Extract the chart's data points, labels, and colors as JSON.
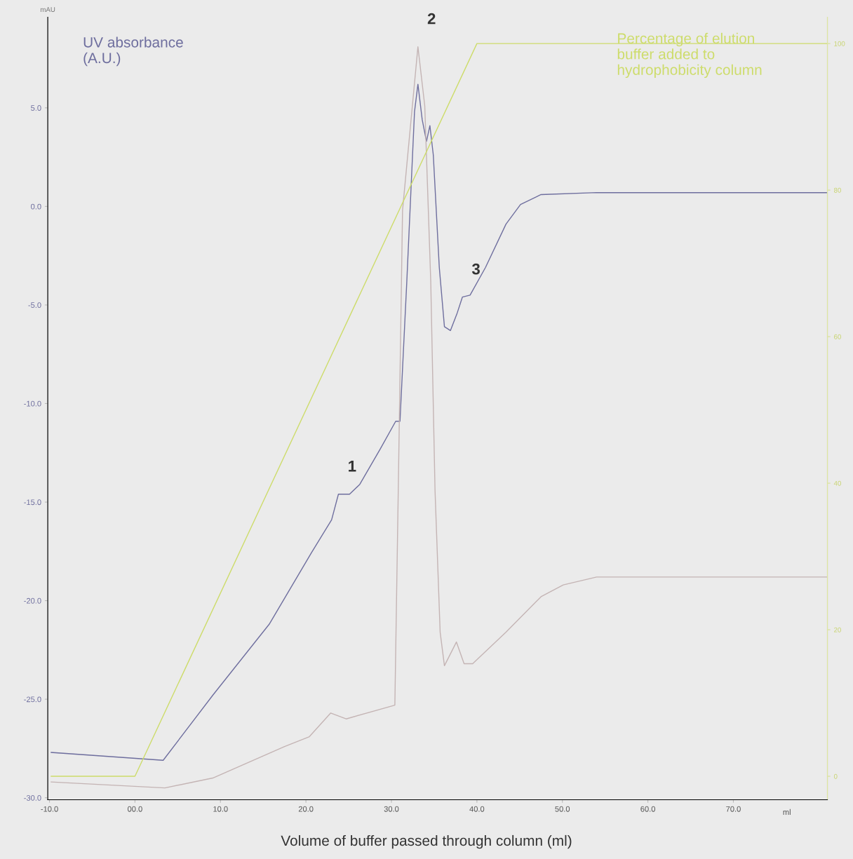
{
  "chart_data": {
    "type": "line",
    "ylabel": "UV absorbance\n(A.U.)",
    "y2label": "Percentage of elution\nbuffer added to\nhydrophobicity column",
    "xlabel": "Volume of buffer passed through column (ml)",
    "xlim": [
      -10.2,
      81
    ],
    "ylim": [
      -30.1,
      9.6
    ],
    "y2lim": [
      -3.2,
      103.6
    ],
    "xticks": [
      {
        "value": -10,
        "label": "-10.0"
      },
      {
        "value": 0,
        "label": "00.0"
      },
      {
        "value": 10,
        "label": "10.0"
      },
      {
        "value": 20,
        "label": "20.0"
      },
      {
        "value": 30,
        "label": "30.0"
      },
      {
        "value": 40,
        "label": "40.0"
      },
      {
        "value": 50,
        "label": "50.0"
      },
      {
        "value": 60,
        "label": "60.0"
      },
      {
        "value": 70,
        "label": "70.0"
      }
    ],
    "yticks": [
      {
        "value": 5,
        "label": "5.0"
      },
      {
        "value": 0,
        "label": "0.0"
      },
      {
        "value": -5,
        "label": "-5.0"
      },
      {
        "value": -10,
        "label": "-10.0"
      },
      {
        "value": -15,
        "label": "-15.0"
      },
      {
        "value": -20,
        "label": "-20.0"
      },
      {
        "value": -25,
        "label": "-25.0"
      },
      {
        "value": -30,
        "label": "-30.0"
      }
    ],
    "y2ticks": [
      0,
      20,
      40,
      60,
      80,
      100
    ],
    "grid": false,
    "series": [
      {
        "color": "#6e6e9e",
        "x": [
          -9.8,
          3.3,
          9.1,
          15.7,
          20.6,
          23.0,
          23.8,
          25.1,
          26.3,
          28.7,
          30.5,
          31.0,
          31.8,
          32.7,
          33.1,
          33.6,
          34.1,
          34.5,
          34.9,
          35.6,
          36.2,
          36.9,
          37.7,
          38.3,
          39.2,
          41.0,
          43.4,
          45.1,
          47.5,
          54.0,
          66.3,
          81.0
        ],
        "values": [
          -27.7,
          -28.1,
          -24.8,
          -21.2,
          -17.6,
          -15.9,
          -14.6,
          -14.6,
          -14.1,
          -12.3,
          -10.9,
          -10.9,
          -3.8,
          4.8,
          6.2,
          4.4,
          3.3,
          4.1,
          2.6,
          -3.1,
          -6.1,
          -6.3,
          -5.4,
          -4.6,
          -4.5,
          -3.1,
          -0.9,
          0.1,
          0.6,
          0.7,
          0.7,
          0.7
        ]
      },
      {
        "color": "#c4b4b4",
        "x": [
          -9.8,
          3.5,
          9.1,
          17.5,
          20.4,
          22.9,
          24.7,
          30.4,
          30.8,
          31.3,
          33.1,
          33.9,
          34.6,
          35.1,
          35.7,
          36.2,
          37.6,
          38.5,
          39.5,
          43.4,
          47.5,
          50.1,
          54.0,
          81.0
        ],
        "values": [
          -29.2,
          -29.5,
          -29.0,
          -27.4,
          -26.9,
          -25.7,
          -26.0,
          -25.3,
          -14.4,
          -0.2,
          8.1,
          5.1,
          -3.8,
          -14.4,
          -21.6,
          -23.3,
          -22.1,
          -23.2,
          -23.2,
          -21.6,
          -19.8,
          -19.2,
          -18.8,
          -18.8
        ]
      },
      {
        "color": "#cddc6a",
        "axis": "y2",
        "x": [
          -9.8,
          0,
          40,
          81
        ],
        "values": [
          0,
          0,
          100,
          100
        ]
      }
    ],
    "annotations": [
      "mAU",
      "ml",
      {
        "text": "1",
        "x": 23.8,
        "y": -14.6
      },
      {
        "text": "2",
        "x": 33.1,
        "y": 8.1
      },
      {
        "text": "3",
        "x": 38.3,
        "y": -4.6
      }
    ]
  }
}
